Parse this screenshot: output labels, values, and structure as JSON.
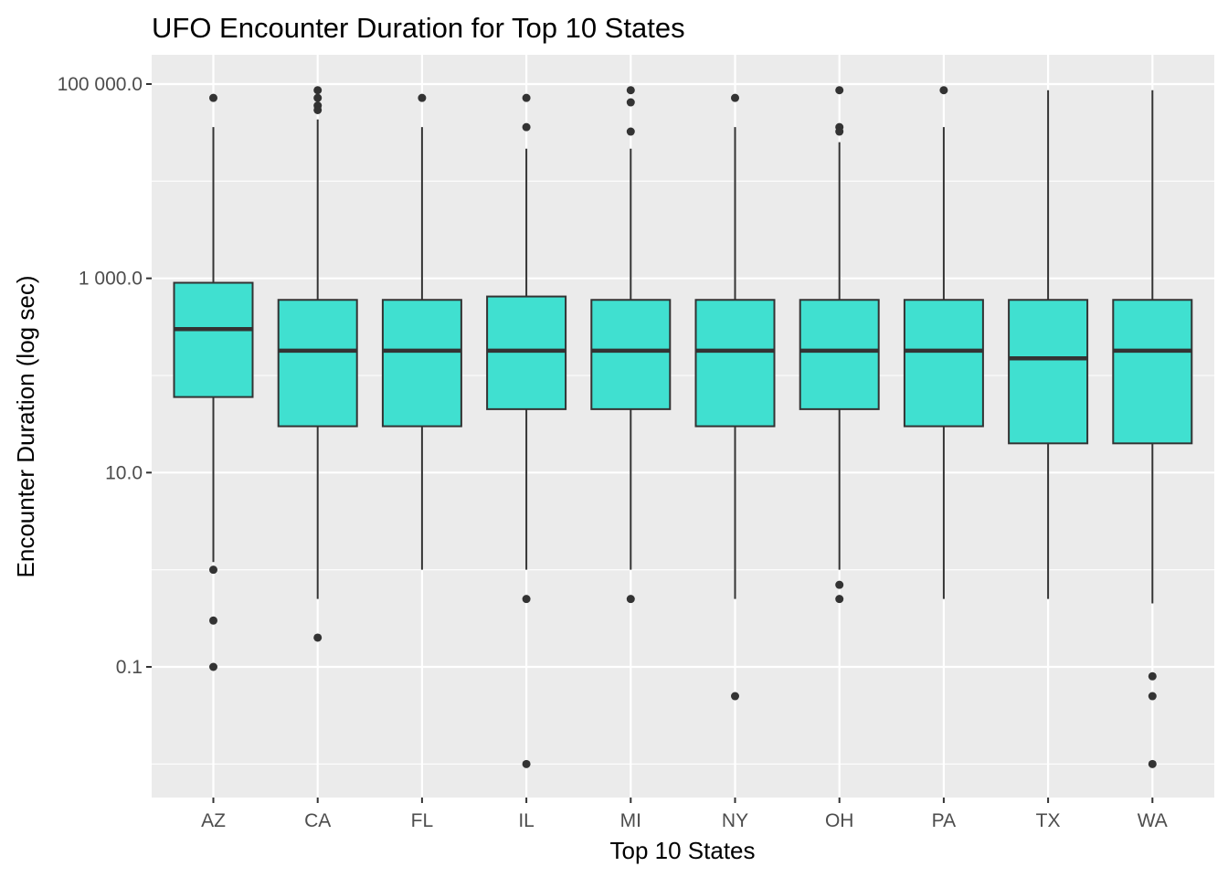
{
  "chart_data": {
    "type": "boxplot",
    "title": "UFO Encounter Duration for Top 10 States",
    "xlabel": "Top 10 States",
    "ylabel": "Encounter Duration (log sec)",
    "y_scale": "log10",
    "ylim": [
      0.01,
      200000
    ],
    "y_ticks": [
      {
        "value": 0.1,
        "label": "0.1"
      },
      {
        "value": 10,
        "label": "10.0"
      },
      {
        "value": 1000,
        "label": "1 000.0"
      },
      {
        "value": 100000,
        "label": "100 000.0"
      }
    ],
    "y_minor_ticks": [
      0.01,
      1,
      100,
      10000
    ],
    "grid": true,
    "colors": {
      "box_fill": "#40E0D0",
      "box_stroke": "#333333",
      "panel_bg": "#EBEBEB",
      "grid": "#FFFFFF",
      "outlier": "#333333"
    },
    "categories": [
      "AZ",
      "CA",
      "FL",
      "IL",
      "MI",
      "NY",
      "OH",
      "PA",
      "TX",
      "WA"
    ],
    "boxes": [
      {
        "category": "AZ",
        "whisker_low": 1.2,
        "q1": 60,
        "median": 300,
        "q3": 900,
        "whisker_high": 36000,
        "outliers": [
          72000,
          1.0,
          0.3,
          0.1
        ]
      },
      {
        "category": "CA",
        "whisker_low": 0.5,
        "q1": 30,
        "median": 180,
        "q3": 600,
        "whisker_high": 43200,
        "outliers": [
          86400,
          72000,
          60000,
          54000,
          0.2
        ]
      },
      {
        "category": "FL",
        "whisker_low": 1.0,
        "q1": 30,
        "median": 180,
        "q3": 600,
        "whisker_high": 36000,
        "outliers": [
          72000
        ]
      },
      {
        "category": "IL",
        "whisker_low": 1.0,
        "q1": 45,
        "median": 180,
        "q3": 650,
        "whisker_high": 21600,
        "outliers": [
          72000,
          36000,
          0.5,
          0.01
        ]
      },
      {
        "category": "MI",
        "whisker_low": 1.0,
        "q1": 45,
        "median": 180,
        "q3": 600,
        "whisker_high": 21600,
        "outliers": [
          86400,
          64800,
          32400,
          0.5
        ]
      },
      {
        "category": "NY",
        "whisker_low": 0.5,
        "q1": 30,
        "median": 180,
        "q3": 600,
        "whisker_high": 36000,
        "outliers": [
          72000,
          0.05
        ]
      },
      {
        "category": "OH",
        "whisker_low": 1.0,
        "q1": 45,
        "median": 180,
        "q3": 600,
        "whisker_high": 25200,
        "outliers": [
          86400,
          36000,
          32400,
          0.7,
          0.5
        ]
      },
      {
        "category": "PA",
        "whisker_low": 0.5,
        "q1": 30,
        "median": 180,
        "q3": 600,
        "whisker_high": 36000,
        "outliers": [
          86400
        ]
      },
      {
        "category": "TX",
        "whisker_low": 0.5,
        "q1": 20,
        "median": 150,
        "q3": 600,
        "whisker_high": 86400,
        "outliers": []
      },
      {
        "category": "WA",
        "whisker_low": 0.45,
        "q1": 20,
        "median": 180,
        "q3": 600,
        "whisker_high": 86400,
        "outliers": [
          0.08,
          0.05,
          0.01
        ]
      }
    ]
  }
}
